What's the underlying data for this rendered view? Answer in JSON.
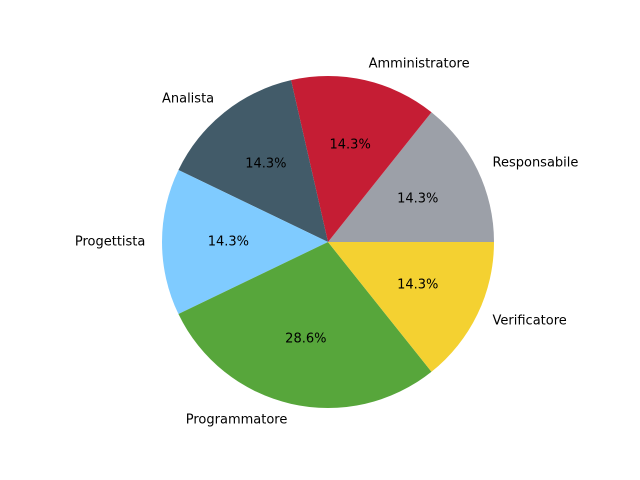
{
  "chart_data": {
    "type": "pie",
    "title": "",
    "start_angle_deg": 0,
    "direction": "counterclockwise",
    "slices": [
      {
        "label": "Responsabile",
        "value": 1,
        "pct_label": "14.3%",
        "color": "#9ca0a8"
      },
      {
        "label": "Amministratore",
        "value": 1,
        "pct_label": "14.3%",
        "color": "#c51d34"
      },
      {
        "label": "Analista",
        "value": 1,
        "pct_label": "14.3%",
        "color": "#425b69"
      },
      {
        "label": "Progettista",
        "value": 1,
        "pct_label": "14.3%",
        "color": "#7fcbff"
      },
      {
        "label": "Programmatore",
        "value": 2,
        "pct_label": "28.6%",
        "color": "#57a63b"
      },
      {
        "label": "Verificatore",
        "value": 1,
        "pct_label": "14.3%",
        "color": "#f4d131"
      }
    ]
  }
}
